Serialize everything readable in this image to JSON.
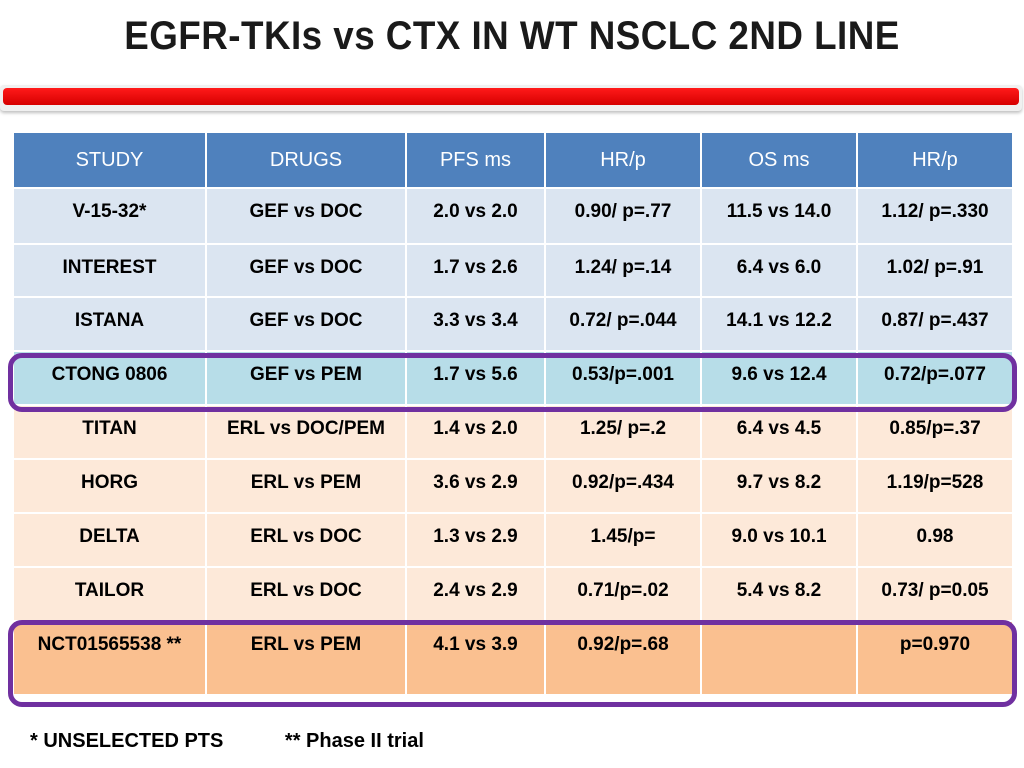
{
  "title": "EGFR-TKIs vs CTX IN WT NSCLC 2ND LINE",
  "table": {
    "headers": [
      "STUDY",
      "DRUGS",
      "PFS ms",
      "HR/p",
      "OS ms",
      "HR/p"
    ],
    "rows": [
      [
        "V-15-32*",
        "GEF vs DOC",
        "2.0 vs 2.0",
        "0.90/ p=.77",
        "11.5 vs 14.0",
        "1.12/ p=.330"
      ],
      [
        "INTEREST",
        "GEF vs DOC",
        "1.7 vs 2.6",
        "1.24/ p=.14",
        "6.4 vs 6.0",
        "1.02/ p=.91"
      ],
      [
        "ISTANA",
        "GEF vs  DOC",
        "3.3 vs 3.4",
        "0.72/ p=.044",
        "14.1 vs 12.2",
        "0.87/ p=.437"
      ],
      [
        "CTONG 0806",
        "GEF vs PEM",
        "1.7 vs 5.6",
        "0.53/p=.001",
        "9.6 vs 12.4",
        "0.72/p=.077"
      ],
      [
        "TITAN",
        "ERL vs DOC/PEM",
        "1.4 vs 2.0",
        "1.25/ p=.2",
        "6.4 vs 4.5",
        "0.85/p=.37"
      ],
      [
        "HORG",
        "ERL vs PEM",
        "3.6 vs 2.9",
        "0.92/p=.434",
        "9.7 vs 8.2",
        "1.19/p=528"
      ],
      [
        "DELTA",
        "ERL vs DOC",
        "1.3 vs 2.9",
        "1.45/p=",
        "9.0 vs 10.1",
        "0.98"
      ],
      [
        "TAILOR",
        "ERL vs DOC",
        "2.4 vs 2.9",
        "0.71/p=.02",
        "5.4 vs 8.2",
        "0.73/ p=0.05"
      ],
      [
        "NCT01565538 **",
        "ERL vs PEM",
        "4.1 vs 3.9",
        "0.92/p=.68",
        "",
        "p=0.970"
      ]
    ]
  },
  "footnotes": {
    "unselected": "* UNSELECTED PTS",
    "phase2": "** Phase II trial"
  },
  "colors": {
    "header": "#4f81bd",
    "gefitinib_rows": "#dbe5f1",
    "highlight_row": "#b7dde8",
    "erlotinib_rows": "#fde9d9",
    "last_row": "#fac090",
    "highlight_border": "#7030a0",
    "title_bar": "#ff0000"
  }
}
